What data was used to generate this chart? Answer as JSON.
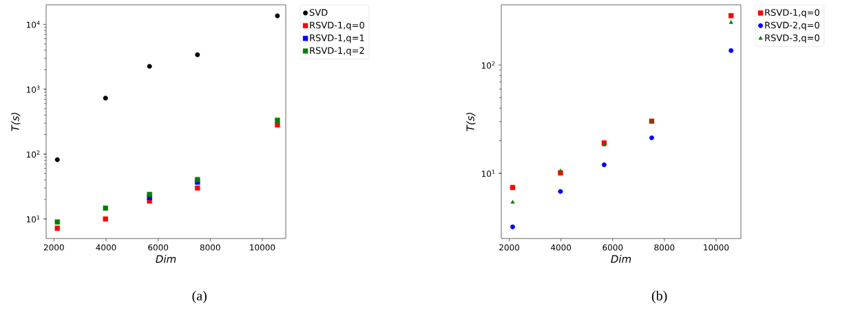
{
  "chart_data": [
    {
      "type": "scatter",
      "xlabel": "Dim",
      "ylabel": "T(s)",
      "log": "y",
      "legend": "right",
      "grid": false,
      "x": [
        2130,
        3980,
        5670,
        7510,
        10580
      ],
      "xlim": [
        1700,
        10900
      ],
      "ylim": [
        5,
        20000
      ],
      "xticks": [
        2000,
        4000,
        6000,
        8000,
        10000
      ],
      "yticks": [
        {
          "value": 10,
          "label": "10$^{1}$"
        },
        {
          "value": 100,
          "label": "10$^{2}$"
        },
        {
          "value": 1000,
          "label": "10$^{3}$"
        },
        {
          "value": 10000,
          "label": "10$^{4}$"
        }
      ],
      "annotations": [
        "(a)"
      ],
      "series": [
        {
          "name": "SVD",
          "color": "#000000",
          "marker": "circle",
          "values": [
            82,
            730,
            2250,
            3400,
            13500
          ]
        },
        {
          "name": "RSVD-1,q=0",
          "color": "#ff0000",
          "marker": "square",
          "values": [
            7.2,
            10,
            18.9,
            30,
            282
          ]
        },
        {
          "name": "RSVD-1,q=1",
          "color": "#0000ff",
          "marker": "square",
          "values": [
            null,
            null,
            21.5,
            37,
            null
          ]
        },
        {
          "name": "RSVD-1,q=2",
          "color": "#008000",
          "marker": "square",
          "values": [
            9.0,
            14.7,
            23.9,
            40.5,
            332
          ]
        }
      ]
    },
    {
      "type": "scatter",
      "xlabel": "Dim",
      "ylabel": "T(s)",
      "log": "y",
      "legend": "right",
      "grid": false,
      "x": [
        2130,
        3980,
        5670,
        7510,
        10580
      ],
      "xlim": [
        1690,
        10960
      ],
      "ylim": [
        2.5,
        360
      ],
      "xticks": [
        2000,
        4000,
        6000,
        8000,
        10000
      ],
      "yticks": [
        {
          "value": 10,
          "label": "10$^{1}$"
        },
        {
          "value": 100,
          "label": "10$^{2}$"
        }
      ],
      "annotations": [
        "(b)"
      ],
      "series": [
        {
          "name": "RSVD-1,q=0",
          "color": "#ff0000",
          "marker": "square",
          "values": [
            7.4,
            10.1,
            19.1,
            30.3,
            286
          ]
        },
        {
          "name": "RSVD-2,q=0",
          "color": "#0000ff",
          "marker": "circle",
          "values": [
            3.2,
            6.8,
            12.0,
            21.3,
            136
          ]
        },
        {
          "name": "RSVD-3,q=0",
          "color": "#008000",
          "marker": "triangle",
          "values": [
            5.4,
            10.5,
            18.3,
            30.3,
            247
          ]
        }
      ]
    }
  ]
}
